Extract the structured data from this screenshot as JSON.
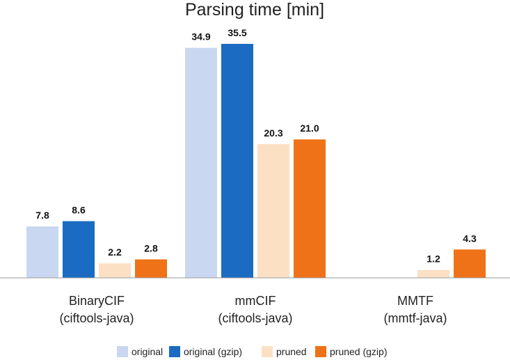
{
  "chart_data": {
    "type": "bar",
    "title": "Parsing time [min]",
    "xlabel": "",
    "ylabel": "",
    "ylim": [
      0,
      38
    ],
    "grid": false,
    "legend_position": "bottom",
    "categories": [
      [
        "BinaryCIF",
        "(ciftools-java)"
      ],
      [
        "mmCIF",
        "(ciftools-java)"
      ],
      [
        "MMTF",
        "(mmtf-java)"
      ]
    ],
    "series": [
      {
        "name": "original",
        "color": "#c9d8f0",
        "values": [
          7.8,
          34.9,
          null
        ],
        "labels": [
          "7.8",
          "34.9",
          ""
        ]
      },
      {
        "name": "original (gzip)",
        "color": "#1a6bc1",
        "values": [
          8.6,
          35.5,
          null
        ],
        "labels": [
          "8.6",
          "35.5",
          ""
        ]
      },
      {
        "name": "pruned",
        "color": "#fbe0c4",
        "values": [
          2.2,
          20.3,
          1.2
        ],
        "labels": [
          "2.2",
          "20.3",
          "1.2"
        ]
      },
      {
        "name": "pruned (gzip)",
        "color": "#f07218",
        "values": [
          2.8,
          21.0,
          4.3
        ],
        "labels": [
          "2.8",
          "21.0",
          "4.3"
        ]
      }
    ]
  }
}
